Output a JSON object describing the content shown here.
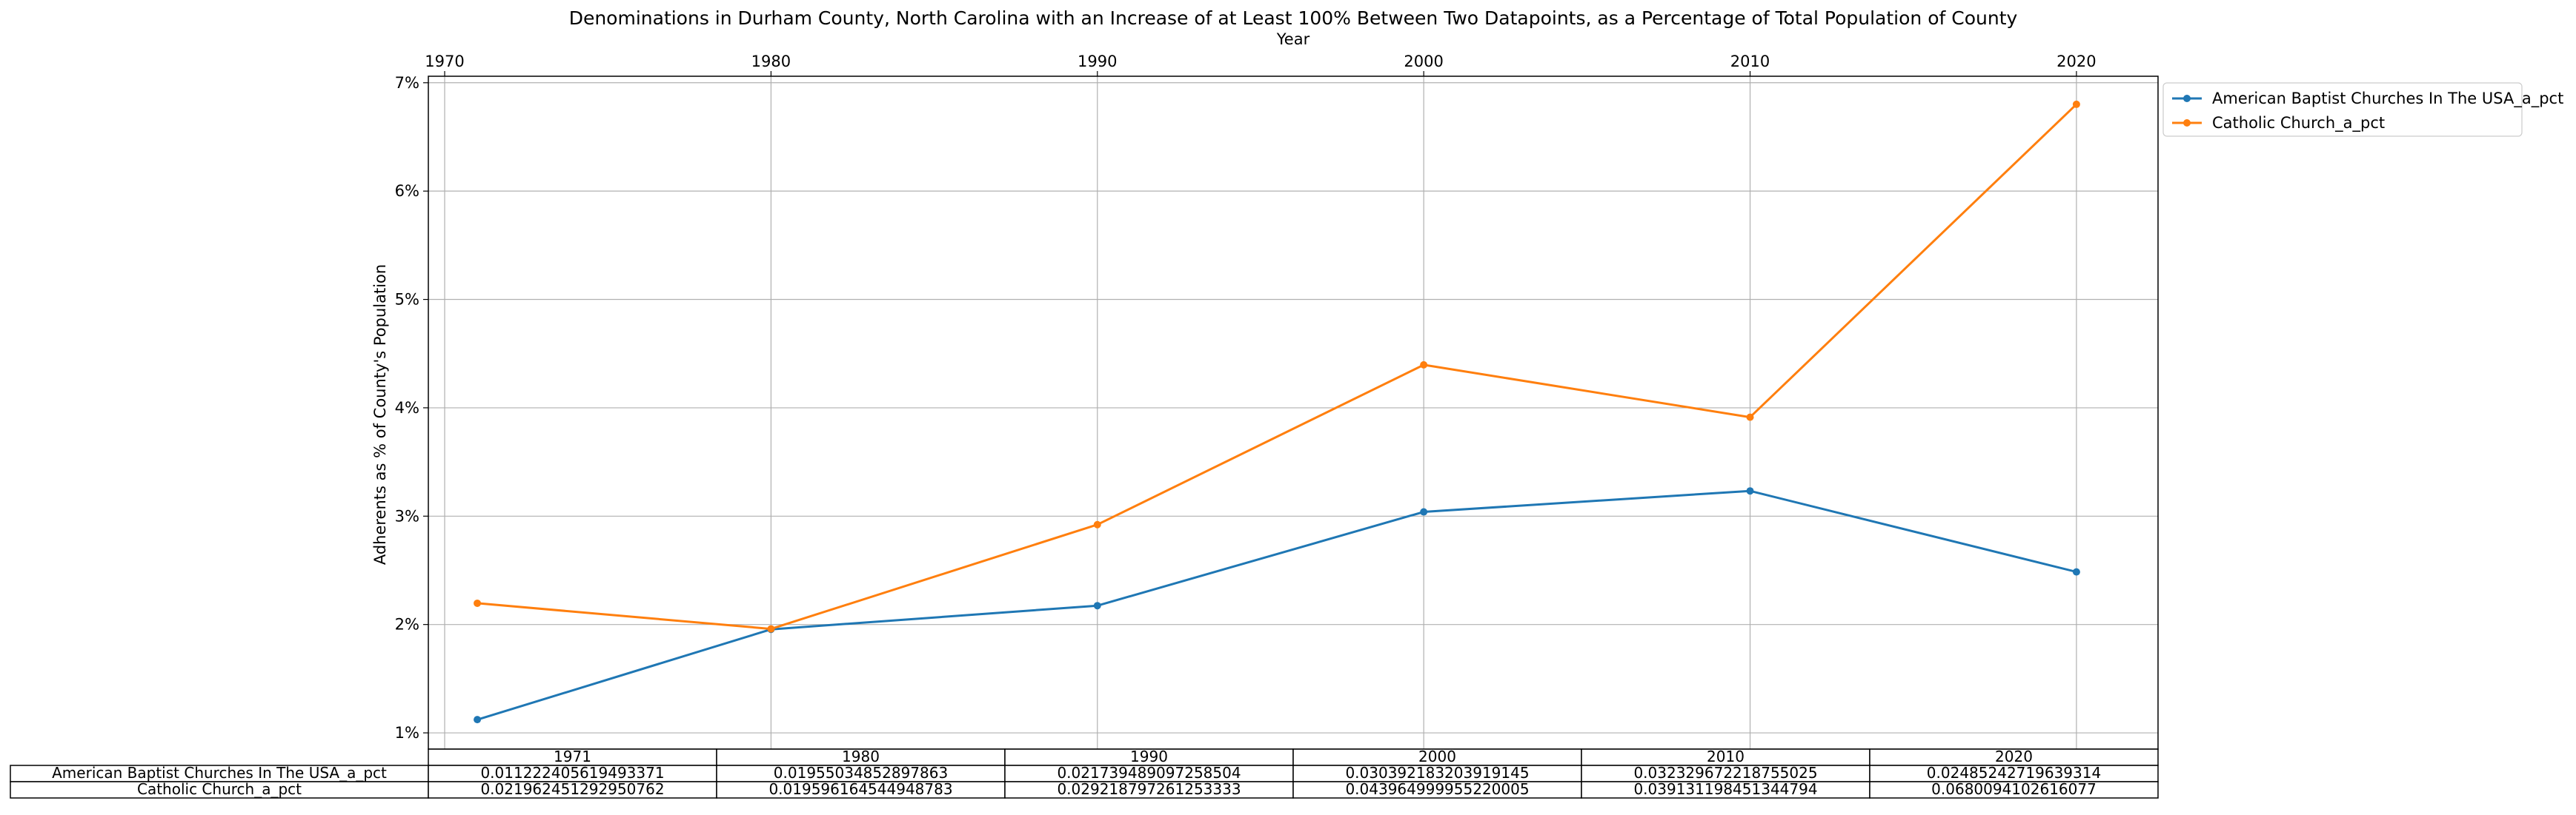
{
  "chart_data": {
    "type": "line",
    "title": "Denominations in Durham County, North Carolina with an Increase of at Least 100% Between Two Datapoints, as a Percentage of Total Population of County",
    "xlabel": "Year",
    "ylabel": "Adherents as % of County's Population",
    "x": [
      1971,
      1980,
      1990,
      2000,
      2010,
      2020
    ],
    "xlim": [
      1969.5,
      2022.5
    ],
    "ylim": [
      0.0085,
      0.0706
    ],
    "x_ticks": [
      1970,
      1980,
      1990,
      2000,
      2010,
      2020
    ],
    "y_ticks": [
      0.01,
      0.02,
      0.03,
      0.04,
      0.05,
      0.06,
      0.07
    ],
    "y_tick_labels": [
      "1%",
      "2%",
      "3%",
      "4%",
      "5%",
      "6%",
      "7%"
    ],
    "grid": true,
    "x_axis_position": "top",
    "legend_placement": "outside-top-right",
    "series": [
      {
        "name": "American Baptist Churches In The USA_a_pct",
        "color": "#1f77b4",
        "values": [
          0.011222405619493371,
          0.01955034852897863,
          0.021739489097258504,
          0.030392183203919145,
          0.032329672218755025,
          0.02485242719639314
        ]
      },
      {
        "name": "Catholic Church_a_pct",
        "color": "#ff7f0e",
        "values": [
          0.021962451292950762,
          0.019596164544948783,
          0.029218797261253333,
          0.043964999955220005,
          0.039131198451344794,
          0.0680094102616077
        ]
      }
    ],
    "table": {
      "columns": [
        "1971",
        "1980",
        "1990",
        "2000",
        "2010",
        "2020"
      ],
      "rows": [
        {
          "label": "American Baptist Churches In The USA_a_pct",
          "cells": [
            "0.011222405619493371",
            "0.01955034852897863",
            "0.021739489097258504",
            "0.030392183203919145",
            "0.032329672218755025",
            "0.02485242719639314"
          ]
        },
        {
          "label": "Catholic Church_a_pct",
          "cells": [
            "0.021962451292950762",
            "0.019596164544948783",
            "0.029218797261253333",
            "0.043964999955220005",
            "0.039131198451344794",
            "0.0680094102616077"
          ]
        }
      ]
    }
  }
}
